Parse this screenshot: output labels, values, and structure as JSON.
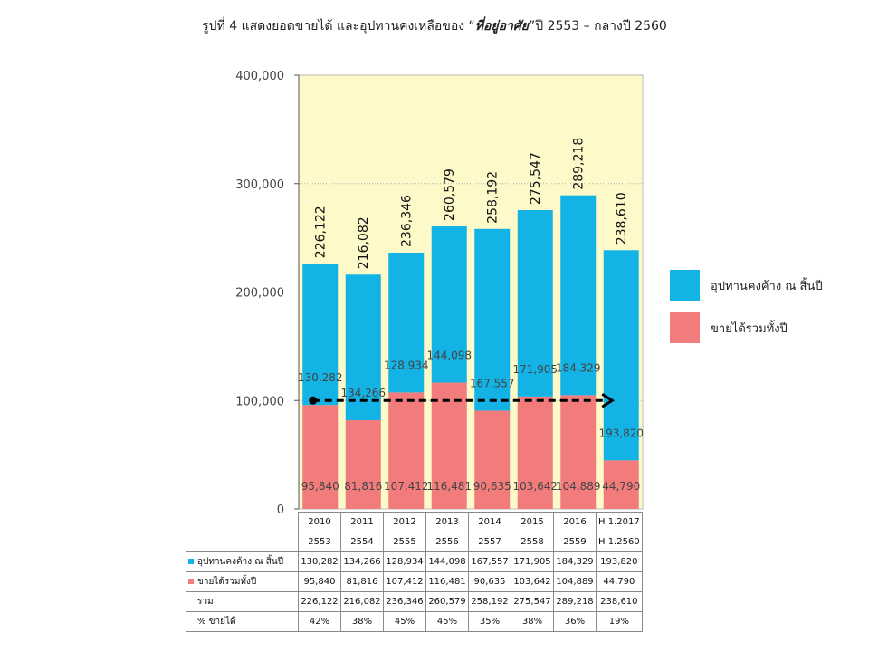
{
  "title_prefix": "รูปที่ 4 แสดงยอดขายได้ และอุปทานคงเหลือของ “",
  "title_emph": "ที่อยู่อาศัย",
  "title_suffix": "”ปี 2553 – กลางปี 2560",
  "colors": {
    "plot_bg": "#fdf9c9",
    "supply": "#13b3e6",
    "sales": "#f27c7c",
    "arrow": "#000000"
  },
  "chart_data": {
    "type": "bar",
    "stacked": true,
    "ylim": [
      0,
      400000
    ],
    "y_ticks": [
      0,
      100000,
      200000,
      300000,
      400000
    ],
    "y_tick_labels": [
      "0",
      "100,000",
      "200,000",
      "300,000",
      "400,000"
    ],
    "categories": [
      "2010",
      "2011",
      "2012",
      "2013",
      "2014",
      "2015",
      "2016",
      "H 1.2017"
    ],
    "categories_th": [
      "2553",
      "2554",
      "2555",
      "2556",
      "2557",
      "2558",
      "2559",
      "H 1.2560"
    ],
    "series": [
      {
        "name": "อุปทานคงค้าง ณ สิ้นปี",
        "values": [
          130282,
          134266,
          128934,
          144098,
          167557,
          171905,
          184329,
          193820
        ],
        "labels": [
          "130,282",
          "134,266",
          "128,934",
          "144,098",
          "167,557",
          "171,905",
          "184,329",
          "193,820"
        ]
      },
      {
        "name": "ขายได้รวมทั้งปี",
        "values": [
          95840,
          81816,
          107412,
          116481,
          90635,
          103642,
          104889,
          44790
        ],
        "labels": [
          "95,840",
          "81,816",
          "107,412",
          "116,481",
          "90,635",
          "103,642",
          "104,889",
          "44,790"
        ]
      }
    ],
    "totals": [
      226122,
      216082,
      236346,
      260579,
      258192,
      275547,
      289218,
      238610
    ],
    "total_labels": [
      "226,122",
      "216,082",
      "236,346",
      "260,579",
      "258,192",
      "275,547",
      "289,218",
      "238,610"
    ],
    "arrow": {
      "from": "2010",
      "to": "H 1.2017",
      "y": 100000
    },
    "grid": "dotted",
    "legend": "right",
    "table": {
      "rows": [
        {
          "label": "อุปทานคงค้าง ณ สิ้นปี",
          "swatch": "supply",
          "values": [
            "130,282",
            "134,266",
            "128,934",
            "144,098",
            "167,557",
            "171,905",
            "184,329",
            "193,820"
          ]
        },
        {
          "label": "ขายได้รวมทั้งปี",
          "swatch": "sales",
          "values": [
            "95,840",
            "81,816",
            "107,412",
            "116,481",
            "90,635",
            "103,642",
            "104,889",
            "44,790"
          ]
        },
        {
          "label": "รวม",
          "swatch": "",
          "values": [
            "226,122",
            "216,082",
            "236,346",
            "260,579",
            "258,192",
            "275,547",
            "289,218",
            "238,610"
          ]
        },
        {
          "label": "% ขายได้",
          "swatch": "",
          "values": [
            "42%",
            "38%",
            "45%",
            "45%",
            "35%",
            "38%",
            "36%",
            "19%"
          ]
        }
      ]
    }
  }
}
